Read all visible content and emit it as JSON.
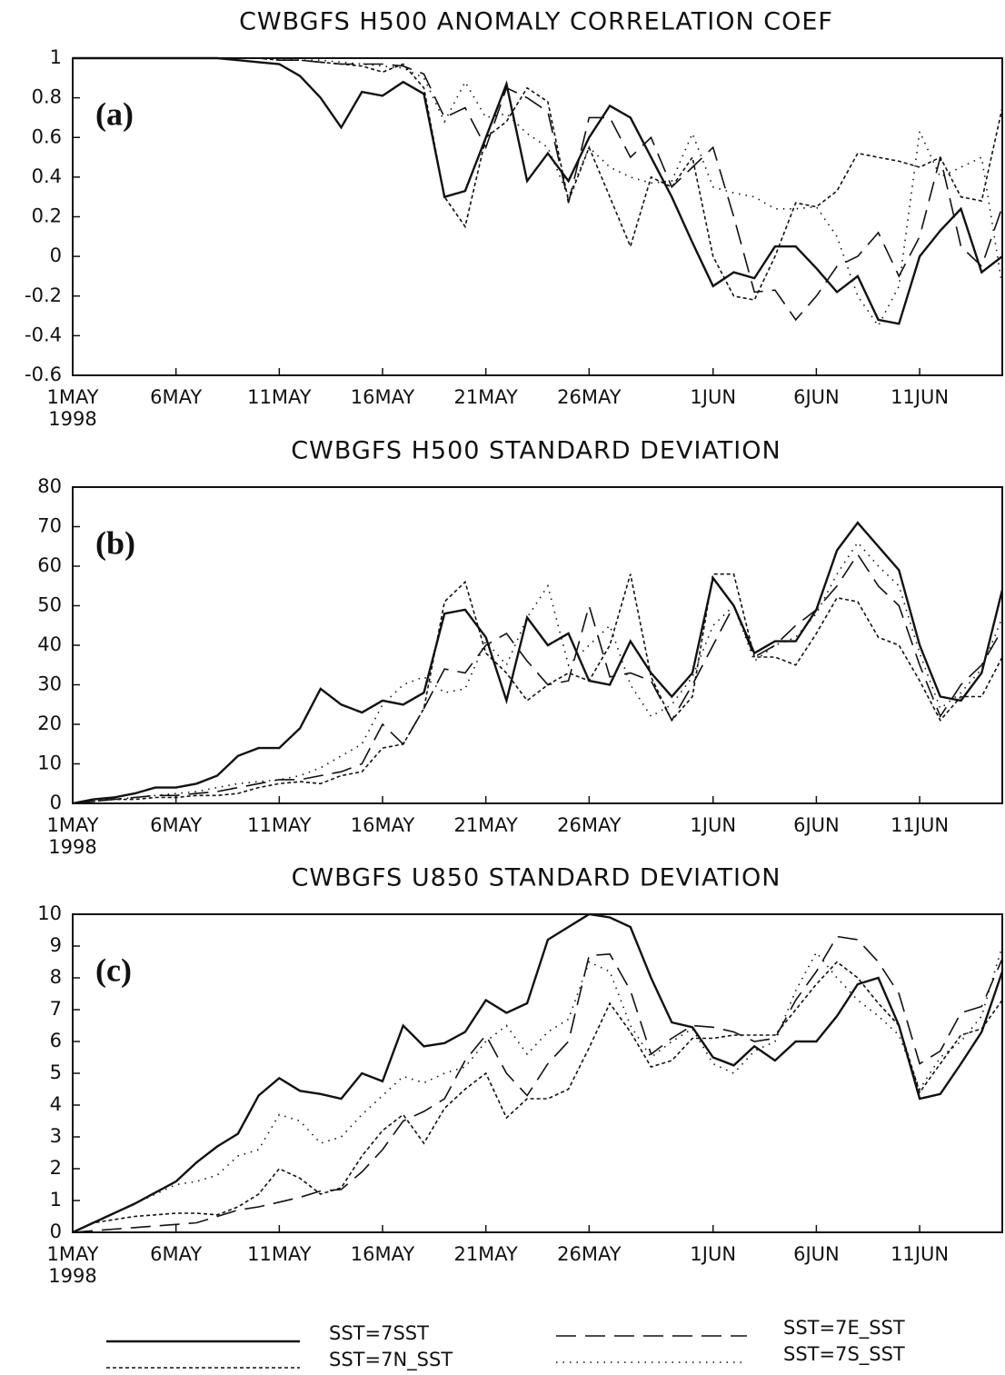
{
  "chart_data": [
    {
      "type": "line",
      "title": "CWBGFS H500 ANOMALY CORRELATION COEF",
      "panel_label": "(a)",
      "x_sublabel": "1998",
      "x": [
        0,
        1,
        2,
        3,
        4,
        5,
        6,
        7,
        8,
        9,
        10,
        11,
        12,
        13,
        14,
        15,
        16,
        17,
        18,
        19,
        20,
        21,
        22,
        23,
        24,
        25,
        26,
        27,
        28,
        29,
        30,
        31,
        32,
        33,
        34,
        35,
        36,
        37,
        38,
        39,
        40,
        41,
        42,
        43,
        44,
        45
      ],
      "xlim": [
        0,
        45
      ],
      "xticks": [
        {
          "value": 0,
          "label": "1MAY"
        },
        {
          "value": 5,
          "label": "6MAY"
        },
        {
          "value": 10,
          "label": "11MAY"
        },
        {
          "value": 15,
          "label": "16MAY"
        },
        {
          "value": 20,
          "label": "21MAY"
        },
        {
          "value": 25,
          "label": "26MAY"
        },
        {
          "value": 31,
          "label": "1JUN"
        },
        {
          "value": 36,
          "label": "6JUN"
        },
        {
          "value": 41,
          "label": "11JUN"
        }
      ],
      "ylim": [
        -0.6,
        1
      ],
      "yticks": [
        -0.6,
        -0.4,
        -0.2,
        0,
        0.2,
        0.4,
        0.6,
        0.8,
        1
      ],
      "series": [
        {
          "name": "SST=7SST",
          "color": "#111111",
          "dash": "solid",
          "values": [
            1,
            1,
            1,
            1,
            1,
            1,
            1,
            1,
            0.99,
            0.98,
            0.97,
            0.91,
            0.8,
            0.65,
            0.83,
            0.81,
            0.88,
            0.82,
            0.3,
            0.33,
            0.6,
            0.87,
            0.38,
            0.52,
            0.38,
            0.6,
            0.76,
            0.7,
            0.5,
            0.3,
            0.07,
            -0.15,
            -0.08,
            -0.11,
            0.05,
            0.05,
            -0.06,
            -0.18,
            -0.1,
            -0.32,
            -0.34,
            0.0,
            0.13,
            0.24,
            -0.08,
            0.0
          ]
        },
        {
          "name": "SST=7E_SST",
          "color": "#111111",
          "dash": "long",
          "values": [
            1,
            1,
            1,
            1,
            1,
            1,
            1,
            1,
            1,
            1,
            0.99,
            0.99,
            0.98,
            0.97,
            0.97,
            0.97,
            0.96,
            0.92,
            0.7,
            0.75,
            0.55,
            0.85,
            0.8,
            0.73,
            0.27,
            0.7,
            0.7,
            0.5,
            0.6,
            0.35,
            0.45,
            0.55,
            0.2,
            -0.18,
            -0.17,
            -0.32,
            -0.2,
            -0.05,
            0.0,
            0.12,
            -0.1,
            0.1,
            0.5,
            0.05,
            -0.05,
            0.25
          ]
        },
        {
          "name": "SST=7N_SST",
          "color": "#111111",
          "dash": "short",
          "values": [
            1,
            1,
            1,
            1,
            1,
            1,
            1,
            1,
            1,
            1,
            0.99,
            0.99,
            0.98,
            0.97,
            0.96,
            0.93,
            0.97,
            0.85,
            0.3,
            0.15,
            0.6,
            0.68,
            0.85,
            0.78,
            0.28,
            0.55,
            0.3,
            0.05,
            0.4,
            0.35,
            0.5,
            0.0,
            -0.2,
            -0.22,
            0.0,
            0.27,
            0.25,
            0.33,
            0.52,
            0.5,
            0.48,
            0.45,
            0.5,
            0.3,
            0.28,
            0.75
          ]
        },
        {
          "name": "SST=7S_SST",
          "color": "#111111",
          "dash": "dotted",
          "values": [
            1,
            1,
            1,
            1,
            1,
            1,
            1,
            1,
            1,
            1,
            1,
            0.99,
            0.99,
            0.98,
            0.97,
            0.96,
            0.95,
            0.9,
            0.68,
            0.88,
            0.7,
            0.72,
            0.62,
            0.55,
            0.3,
            0.55,
            0.45,
            0.4,
            0.37,
            0.38,
            0.62,
            0.35,
            0.32,
            0.3,
            0.24,
            0.24,
            0.25,
            0.1,
            -0.2,
            -0.35,
            -0.15,
            0.63,
            0.4,
            0.45,
            0.5,
            -0.15
          ]
        }
      ]
    },
    {
      "type": "line",
      "title": "CWBGFS H500 STANDARD DEVIATION",
      "panel_label": "(b)",
      "x_sublabel": "1998",
      "x": [
        0,
        1,
        2,
        3,
        4,
        5,
        6,
        7,
        8,
        9,
        10,
        11,
        12,
        13,
        14,
        15,
        16,
        17,
        18,
        19,
        20,
        21,
        22,
        23,
        24,
        25,
        26,
        27,
        28,
        29,
        30,
        31,
        32,
        33,
        34,
        35,
        36,
        37,
        38,
        39,
        40,
        41,
        42,
        43,
        44,
        45
      ],
      "xlim": [
        0,
        45
      ],
      "xticks": [
        {
          "value": 0,
          "label": "1MAY"
        },
        {
          "value": 5,
          "label": "6MAY"
        },
        {
          "value": 10,
          "label": "11MAY"
        },
        {
          "value": 15,
          "label": "16MAY"
        },
        {
          "value": 20,
          "label": "21MAY"
        },
        {
          "value": 25,
          "label": "26MAY"
        },
        {
          "value": 31,
          "label": "1JUN"
        },
        {
          "value": 36,
          "label": "6JUN"
        },
        {
          "value": 41,
          "label": "11JUN"
        }
      ],
      "ylim": [
        0,
        80
      ],
      "yticks": [
        0,
        10,
        20,
        30,
        40,
        50,
        60,
        70,
        80
      ],
      "series": [
        {
          "values": [
            0,
            1,
            1.5,
            2.5,
            4,
            4,
            5,
            7,
            12,
            14,
            14,
            19,
            29,
            25,
            23,
            26,
            25,
            28,
            48,
            49,
            42,
            26,
            47,
            40,
            43,
            31,
            30,
            41,
            33,
            27,
            33,
            57,
            50,
            38,
            41,
            41,
            49,
            64,
            71,
            65,
            59,
            40,
            27,
            26,
            33,
            54
          ]
        },
        {
          "values": [
            0,
            0.5,
            1,
            1.5,
            2,
            2,
            2.5,
            3,
            4,
            5,
            6,
            6,
            7,
            8,
            10,
            20,
            15,
            24,
            34,
            33,
            40,
            43,
            36,
            30,
            31,
            50,
            32,
            33,
            31,
            21,
            30,
            40,
            50,
            37,
            40,
            45,
            49,
            55,
            63,
            55,
            50,
            35,
            22,
            30,
            35,
            44
          ]
        },
        {
          "values": [
            0,
            0.5,
            1,
            1,
            1.5,
            1.5,
            2,
            2,
            2.5,
            4,
            5,
            5.5,
            5,
            7,
            8,
            14,
            15,
            24,
            51,
            56,
            38,
            33,
            26,
            30,
            33,
            31,
            40,
            58,
            32,
            21,
            27,
            58,
            58,
            37,
            37,
            35,
            43,
            52,
            51,
            42,
            40,
            31,
            21,
            27,
            27,
            37
          ]
        },
        {
          "values": [
            0,
            0.5,
            1,
            1.5,
            2,
            2.5,
            3,
            4,
            5,
            5.5,
            6,
            7,
            9,
            12,
            15,
            25,
            30,
            32,
            28,
            29,
            41,
            35,
            47,
            55,
            35,
            40,
            45,
            30,
            22,
            25,
            32,
            45,
            50,
            36,
            40,
            42,
            48,
            58,
            66,
            60,
            55,
            38,
            24,
            28,
            34,
            47
          ]
        }
      ]
    },
    {
      "type": "line",
      "title": "CWBGFS U850 STANDARD DEVIATION",
      "panel_label": "(c)",
      "x_sublabel": "1998",
      "x": [
        0,
        1,
        2,
        3,
        4,
        5,
        6,
        7,
        8,
        9,
        10,
        11,
        12,
        13,
        14,
        15,
        16,
        17,
        18,
        19,
        20,
        21,
        22,
        23,
        24,
        25,
        26,
        27,
        28,
        29,
        30,
        31,
        32,
        33,
        34,
        35,
        36,
        37,
        38,
        39,
        40,
        41,
        42,
        43,
        44,
        45
      ],
      "xlim": [
        0,
        45
      ],
      "xticks": [
        {
          "value": 0,
          "label": "1MAY"
        },
        {
          "value": 5,
          "label": "6MAY"
        },
        {
          "value": 10,
          "label": "11MAY"
        },
        {
          "value": 15,
          "label": "16MAY"
        },
        {
          "value": 20,
          "label": "21MAY"
        },
        {
          "value": 25,
          "label": "26MAY"
        },
        {
          "value": 31,
          "label": "1JUN"
        },
        {
          "value": 36,
          "label": "6JUN"
        },
        {
          "value": 41,
          "label": "11JUN"
        }
      ],
      "ylim": [
        0,
        10
      ],
      "yticks": [
        0,
        1,
        2,
        3,
        4,
        5,
        6,
        7,
        8,
        9,
        10
      ],
      "series": [
        {
          "values": [
            0,
            0.3,
            0.6,
            0.9,
            1.25,
            1.6,
            2.2,
            2.7,
            3.1,
            4.3,
            4.85,
            4.45,
            4.35,
            4.2,
            5.0,
            4.75,
            6.5,
            5.85,
            5.95,
            6.3,
            7.3,
            6.9,
            7.2,
            9.2,
            9.6,
            10,
            9.9,
            9.6,
            8.0,
            6.6,
            6.45,
            5.5,
            5.25,
            5.85,
            5.4,
            6.0,
            6.0,
            6.8,
            7.8,
            8.0,
            6.5,
            4.2,
            4.35,
            5.3,
            6.3,
            8.2
          ]
        },
        {
          "values": [
            0,
            0.05,
            0.1,
            0.15,
            0.2,
            0.25,
            0.3,
            0.5,
            0.7,
            0.8,
            0.95,
            1.1,
            1.3,
            1.35,
            1.9,
            2.6,
            3.5,
            3.8,
            4.2,
            5.4,
            6.2,
            5.0,
            4.3,
            5.3,
            6.0,
            8.7,
            8.75,
            7.6,
            5.6,
            6.1,
            6.5,
            6.45,
            6.3,
            6.0,
            6.1,
            7.3,
            8.2,
            9.3,
            9.2,
            8.5,
            7.5,
            5.3,
            5.7,
            6.9,
            7.1,
            8.6
          ]
        },
        {
          "values": [
            0,
            0.3,
            0.4,
            0.5,
            0.55,
            0.6,
            0.6,
            0.55,
            0.8,
            1.2,
            2.0,
            1.7,
            1.2,
            1.4,
            2.4,
            3.2,
            3.7,
            2.8,
            3.9,
            4.5,
            5.0,
            3.6,
            4.2,
            4.2,
            4.5,
            5.8,
            7.2,
            6.3,
            5.2,
            5.4,
            6.1,
            6.1,
            6.2,
            6.2,
            6.2,
            7.0,
            7.8,
            8.5,
            8.0,
            7.2,
            6.5,
            4.4,
            5.3,
            6.2,
            6.4,
            7.3
          ]
        },
        {
          "values": [
            0,
            0.3,
            0.6,
            0.9,
            1.2,
            1.5,
            1.6,
            1.8,
            2.4,
            2.6,
            3.7,
            3.5,
            2.8,
            3.0,
            3.7,
            4.3,
            4.9,
            4.7,
            5.0,
            5.2,
            6.0,
            6.5,
            5.6,
            6.3,
            6.7,
            8.5,
            8.2,
            6.5,
            5.5,
            6.0,
            6.4,
            5.3,
            5.0,
            5.7,
            6.0,
            7.6,
            8.8,
            8.0,
            7.3,
            6.8,
            6.2,
            4.5,
            5.5,
            6.0,
            6.8,
            9.0
          ]
        }
      ]
    }
  ]
}
